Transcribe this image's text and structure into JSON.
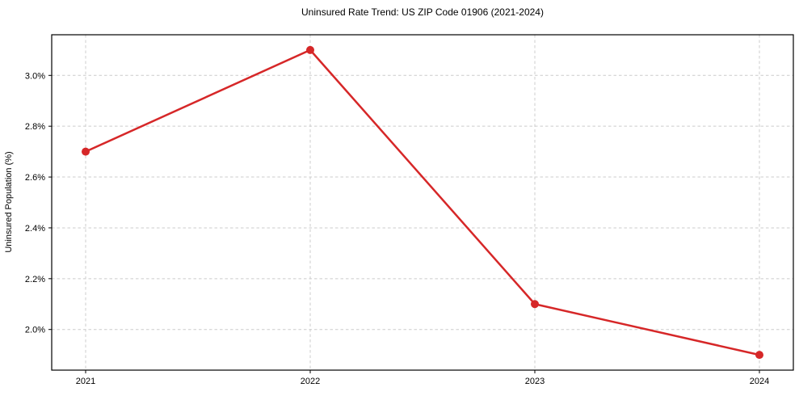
{
  "chart_data": {
    "type": "line",
    "title": "Uninsured Rate Trend: US ZIP Code 01906 (2021-2024)",
    "xlabel": "",
    "ylabel": "Uninsured Population (%)",
    "categories": [
      "2021",
      "2022",
      "2023",
      "2024"
    ],
    "series": [
      {
        "name": "Uninsured Population (%)",
        "values": [
          2.7,
          3.1,
          2.1,
          1.9
        ],
        "color": "#d62728"
      }
    ],
    "yticks": [
      2.0,
      2.2,
      2.4,
      2.6,
      2.8,
      3.0
    ],
    "ytick_labels": [
      "2.0%",
      "2.2%",
      "2.4%",
      "2.6%",
      "2.8%",
      "3.0%"
    ],
    "ylim": [
      1.84,
      3.16
    ],
    "grid": true,
    "grid_style": "dashed",
    "legend_position": "none",
    "marker": "circle",
    "colors": {
      "line": "#d62728",
      "grid": "#cccccc",
      "spine": "#000000",
      "text": "#000000",
      "background": "#ffffff"
    }
  }
}
